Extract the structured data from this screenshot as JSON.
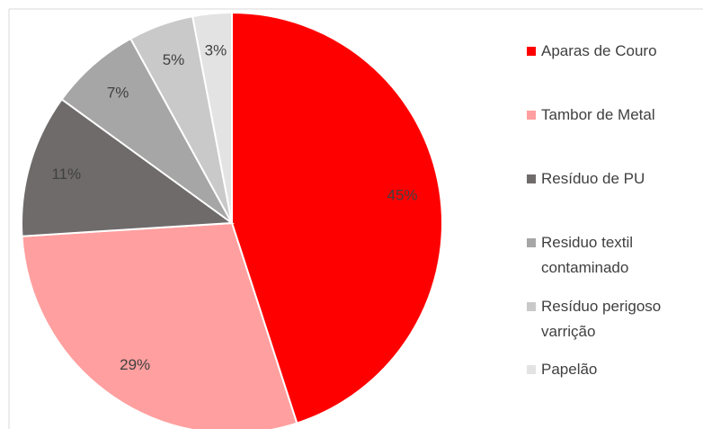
{
  "chart_data": {
    "type": "pie",
    "categories": [
      "Aparas de Couro",
      "Tambor de Metal",
      "Resíduo de PU",
      "Residuo textil contaminado",
      "Resíduo perigoso varrição",
      "Papelão"
    ],
    "values": [
      45,
      29,
      11,
      7,
      5,
      3
    ],
    "value_labels": [
      "45%",
      "29%",
      "11%",
      "7%",
      "5%",
      "3%"
    ],
    "colors": [
      "#ff0000",
      "#ff9f9f",
      "#6f6b6b",
      "#a6a6a6",
      "#c9c9c9",
      "#e3e3e3"
    ],
    "legend": "right"
  }
}
